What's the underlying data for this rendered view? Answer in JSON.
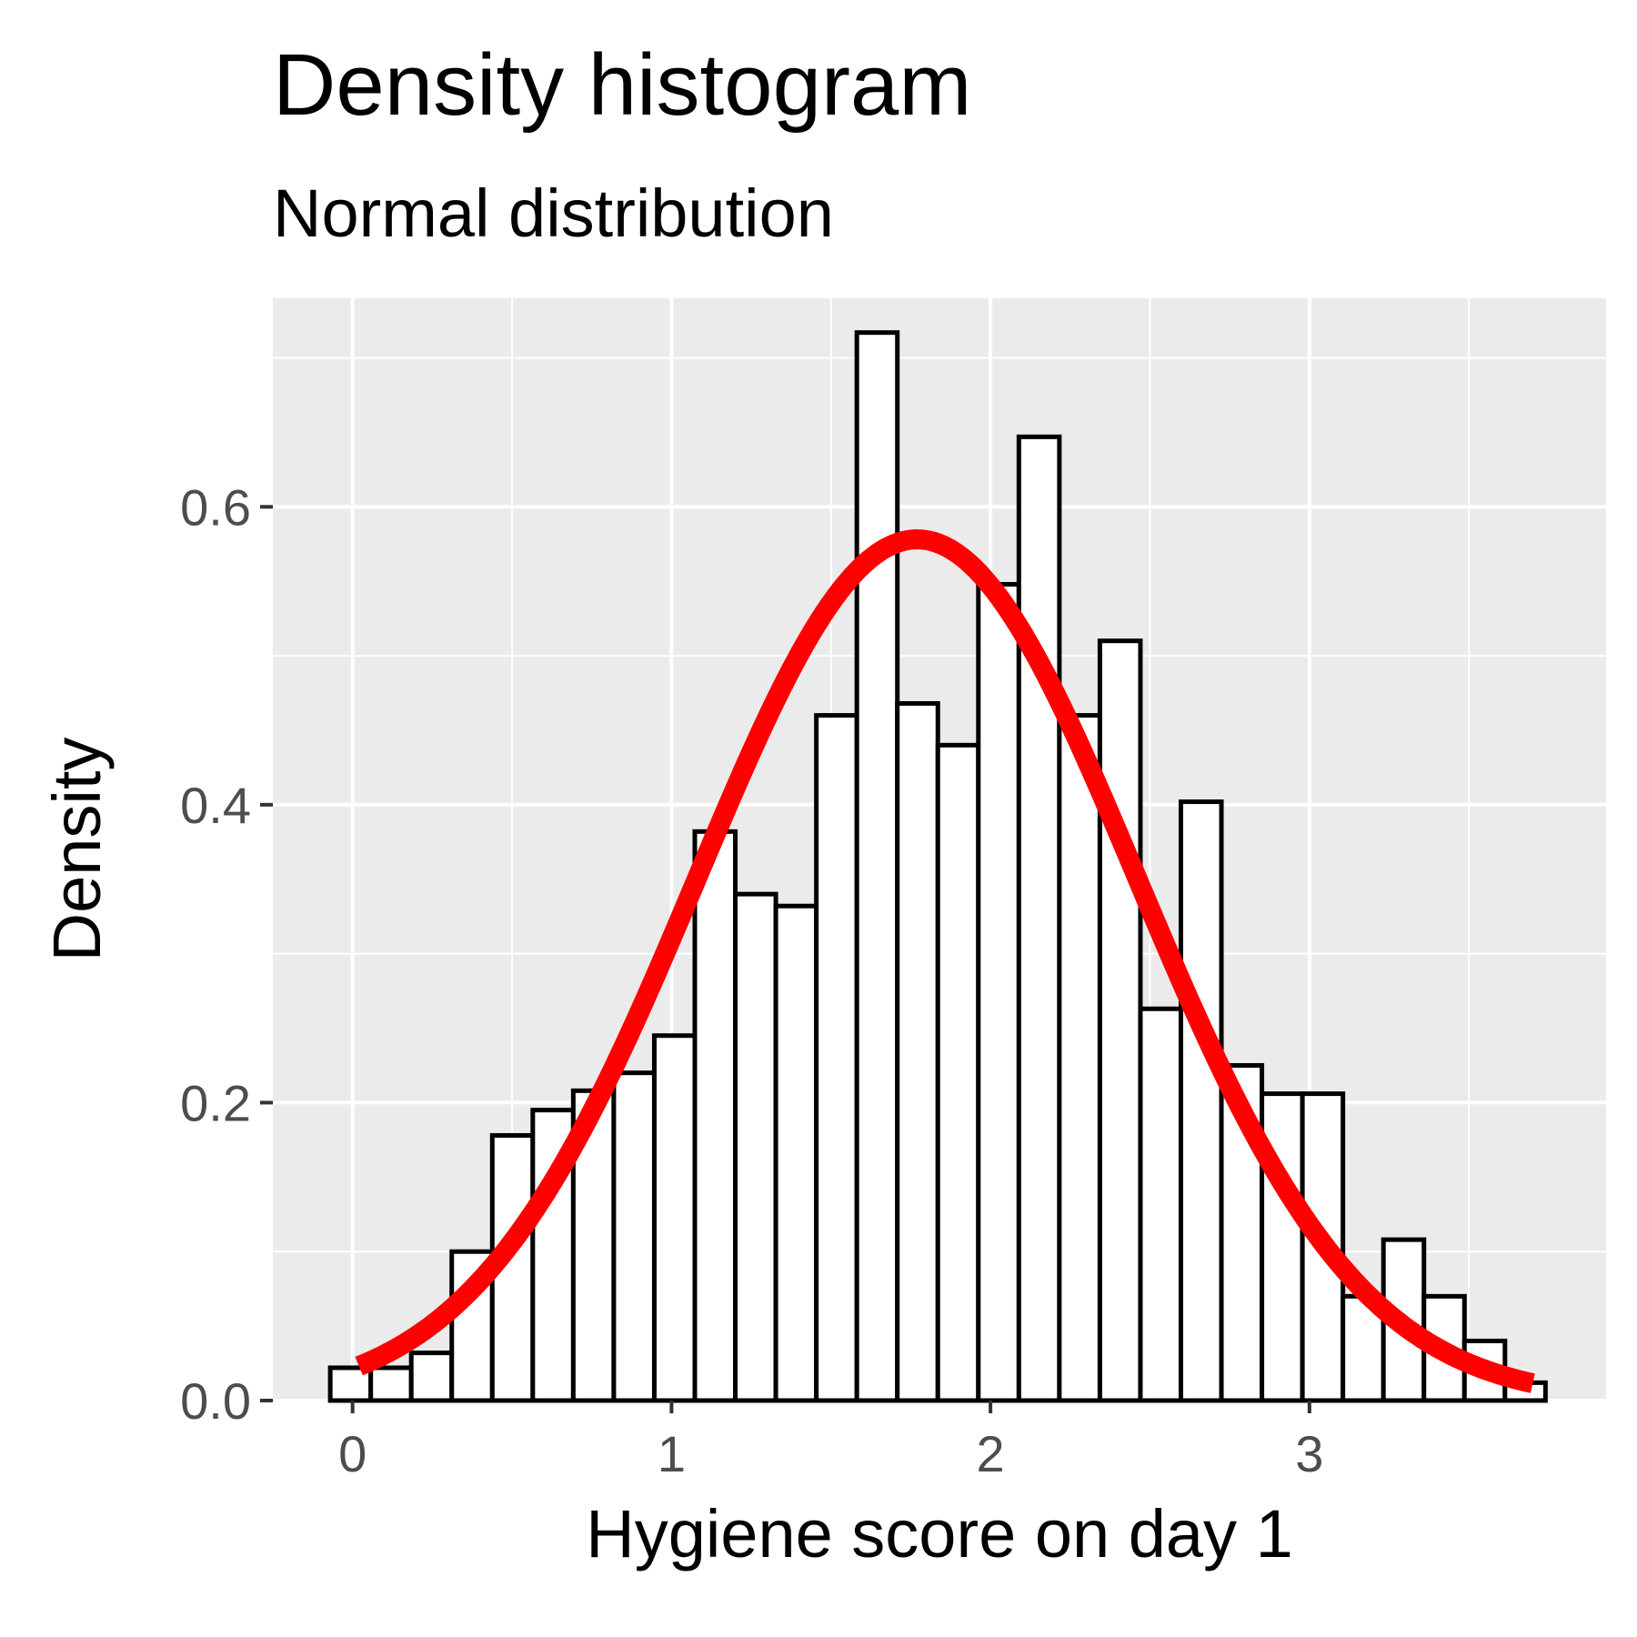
{
  "chart_data": {
    "type": "bar",
    "title": "Density histogram",
    "subtitle": "Normal distribution",
    "xlabel": "Hygiene score on day 1",
    "ylabel": "Density",
    "xlim": [
      -0.25,
      3.93
    ],
    "ylim": [
      0,
      0.74
    ],
    "grid": true,
    "x_ticks": [
      0,
      1,
      2,
      3
    ],
    "y_ticks": [
      0.0,
      0.2,
      0.4,
      0.6
    ],
    "x_tick_labels": [
      "0",
      "1",
      "2",
      "3"
    ],
    "y_tick_labels": [
      "0.0",
      "0.2",
      "0.4",
      "0.6"
    ],
    "bin_width": 0.127,
    "bin_centers": [
      -0.0065,
      0.1205,
      0.2475,
      0.3745,
      0.5015,
      0.6285,
      0.7555,
      0.8825,
      1.0095,
      1.1365,
      1.2635,
      1.3905,
      1.5175,
      1.6445,
      1.7715,
      1.8985,
      2.0255,
      2.1525,
      2.2795,
      2.4065,
      2.5335,
      2.6605,
      2.7875,
      2.9145,
      3.0415,
      3.1685,
      3.2955,
      3.4225,
      3.5495,
      3.6765
    ],
    "values": [
      0.022,
      0.022,
      0.032,
      0.1,
      0.178,
      0.195,
      0.208,
      0.22,
      0.245,
      0.382,
      0.34,
      0.332,
      0.46,
      0.717,
      0.468,
      0.44,
      0.548,
      0.647,
      0.46,
      0.51,
      0.263,
      0.402,
      0.225,
      0.206,
      0.206,
      0.07,
      0.108,
      0.07,
      0.04,
      0.012
    ],
    "density_curve": {
      "type": "line",
      "distribution": "normal",
      "mean": 1.77,
      "sd": 0.69,
      "x_range": [
        0.02,
        3.7
      ],
      "color": "#ff0000"
    },
    "bar_fill": "#ffffff",
    "bar_stroke": "#000000",
    "panel_background": "#ebebeb",
    "grid_color": "#ffffff"
  }
}
